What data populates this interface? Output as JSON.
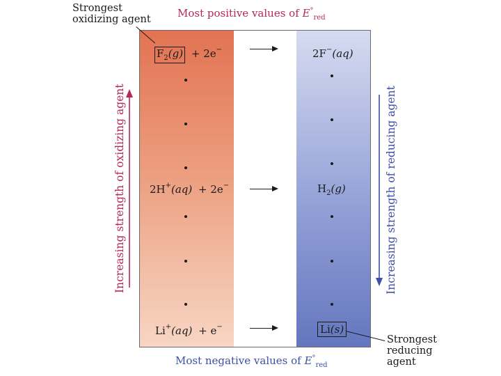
{
  "banners": {
    "top_prefix": "Most positive values of",
    "bottom_prefix": "Most negative values of",
    "e_symbol": "E",
    "e_superscript": "°",
    "e_subscript": "red"
  },
  "callouts": {
    "oxidizing_line1": "Strongest",
    "oxidizing_line2": "oxidizing agent",
    "reducing_line1": "Strongest",
    "reducing_line2": "reducing",
    "reducing_line3": "agent"
  },
  "side_labels": {
    "left": "Increasing strength of oxidizing agent",
    "right": "Increasing strength of reducing agent"
  },
  "reactions": {
    "fluorine": {
      "ox_species": "F",
      "ox_sub": "2",
      "ox_state": "(g)",
      "electrons": "+ 2e",
      "electron_sup": "−",
      "red_coef": "2F",
      "red_sup": "−",
      "red_state": "(aq)"
    },
    "hydrogen": {
      "ox_coef": "2H",
      "ox_sup": "+",
      "ox_state": "(aq)",
      "electrons": "+ 2e",
      "electron_sup": "−",
      "red_species": "H",
      "red_sub": "2",
      "red_state": "(g)"
    },
    "lithium": {
      "ox_species": "Li",
      "ox_sup": "+",
      "ox_state": "(aq)",
      "electrons": "+ e",
      "electron_sup": "−",
      "red_species": "Li",
      "red_state": "(s)"
    }
  },
  "colors": {
    "oxidizing_accent": "#b5285b",
    "reducing_accent": "#3d4fa6",
    "ox_column_top": "#e27352",
    "ox_column_bottom": "#f7d6c4",
    "red_column_top": "#d6dbf0",
    "red_column_bottom": "#6476be"
  }
}
